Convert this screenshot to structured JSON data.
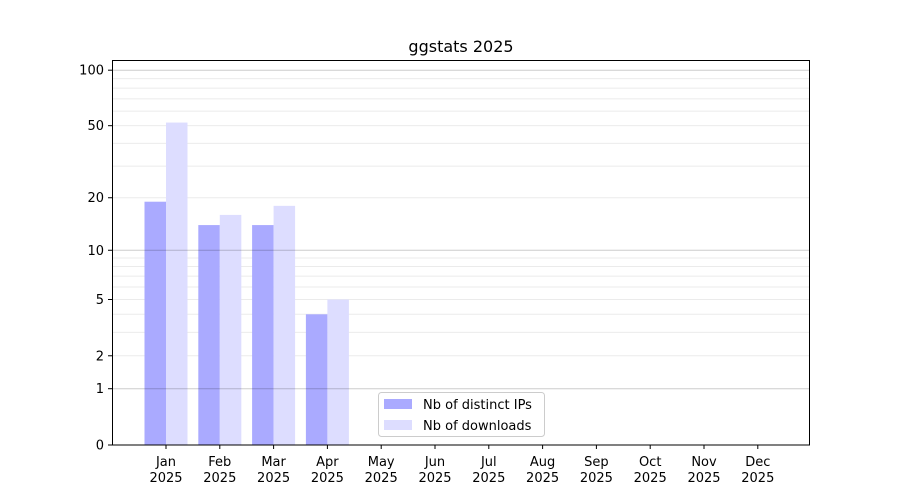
{
  "chart_data": {
    "type": "bar",
    "title": "ggstats 2025",
    "xlabel": "",
    "ylabel": "",
    "yscale": "symlog",
    "ylim": [
      0,
      120
    ],
    "yticks": [
      0,
      1,
      2,
      5,
      10,
      20,
      50,
      100
    ],
    "ytick_labels": [
      "0",
      "1",
      "2",
      "5",
      "10",
      "20",
      "50",
      "100"
    ],
    "categories": [
      "Jan\n2025",
      "Feb\n2025",
      "Mar\n2025",
      "Apr\n2025",
      "May\n2025",
      "Jun\n2025",
      "Jul\n2025",
      "Aug\n2025",
      "Sep\n2025",
      "Oct\n2025",
      "Nov\n2025",
      "Dec\n2025"
    ],
    "grid": true,
    "legend_position": "lower-center",
    "series": [
      {
        "name": "Nb of distinct IPs",
        "color": "#aaaaff",
        "values": [
          19,
          14,
          14,
          4,
          0,
          0,
          0,
          0,
          0,
          0,
          0,
          0
        ]
      },
      {
        "name": "Nb of downloads",
        "color": "#ddddff",
        "values": [
          52,
          16,
          18,
          5,
          0,
          0,
          0,
          0,
          0,
          0,
          0,
          0
        ]
      }
    ]
  }
}
